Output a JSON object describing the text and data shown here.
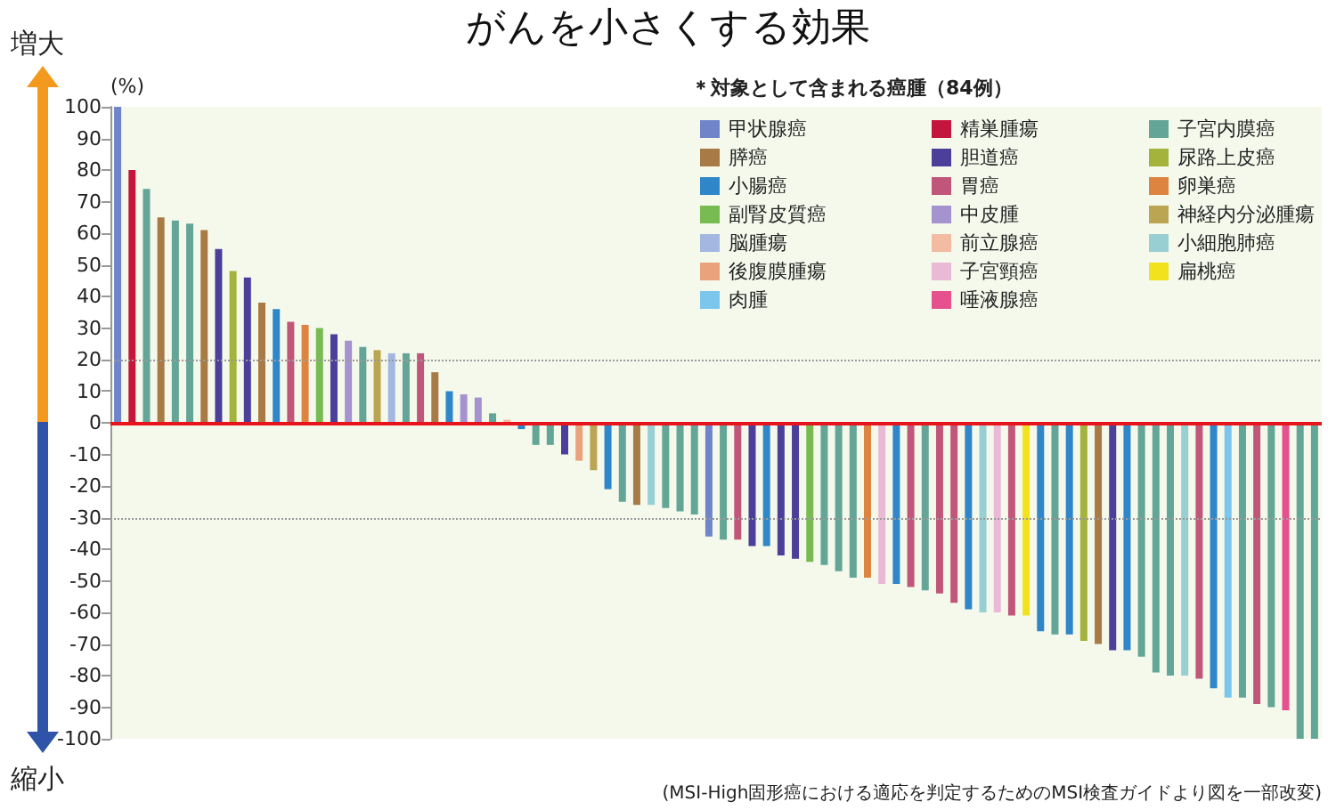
{
  "chart_data": {
    "type": "bar",
    "title": "がんを小さくする効果",
    "ylabel": "(%)",
    "legend_title": "＊対象として含まれる癌腫（84例）",
    "annotations": [
      "増大",
      "縮小",
      "(MSI-High固形癌における適応を判定するためのMSI検査ガイドより図を一部改変)"
    ],
    "categories": [
      null,
      null,
      null,
      null,
      null,
      null,
      null,
      null,
      null,
      null,
      null,
      null,
      null,
      null,
      null,
      null,
      null,
      null,
      null,
      null,
      null,
      null,
      null,
      null,
      null,
      null,
      null,
      null,
      null,
      null,
      null,
      null,
      null,
      null,
      null,
      null,
      null,
      null,
      null,
      null,
      null,
      null,
      null,
      null,
      null,
      null,
      null,
      null,
      null,
      null,
      null,
      null,
      null,
      null,
      null,
      null,
      null,
      null,
      null,
      null,
      null,
      null,
      null,
      null,
      null,
      null,
      null,
      null,
      null,
      null,
      null,
      null,
      null,
      null,
      null,
      null,
      null,
      null,
      null,
      null,
      null,
      null,
      null,
      null
    ],
    "series": [
      {
        "name": "甲状腺癌",
        "color": "#6f84c9",
        "values": [
          100,
          null,
          null,
          null,
          null,
          null,
          null,
          null,
          null,
          null,
          null,
          null,
          null,
          null,
          null,
          null,
          null,
          null,
          null,
          null,
          null,
          null,
          null,
          null,
          null,
          null,
          null,
          null,
          null,
          null,
          null,
          null,
          null,
          null,
          null,
          null,
          null,
          null,
          null,
          null,
          null,
          -36,
          null,
          null,
          null,
          null,
          null,
          null,
          null,
          null,
          null,
          null,
          null,
          null,
          null,
          null,
          null,
          null,
          null,
          null,
          null,
          null,
          null,
          null,
          null,
          null,
          null,
          null,
          null,
          null,
          null,
          null,
          null,
          null,
          null,
          null,
          null,
          null,
          null,
          null,
          null,
          null,
          null,
          null
        ]
      },
      {
        "name": "精巣腫瘍",
        "color": "#c4163c",
        "values": [
          null,
          80,
          null,
          null,
          null,
          null,
          null,
          null,
          null,
          null,
          null,
          null,
          null,
          null,
          null,
          null,
          null,
          null,
          null,
          null,
          null,
          null,
          null,
          null,
          null,
          null,
          null,
          null,
          null,
          null,
          null,
          null,
          null,
          null,
          null,
          null,
          null,
          null,
          null,
          null,
          null,
          null,
          null,
          null,
          null,
          null,
          null,
          null,
          null,
          null,
          null,
          null,
          null,
          null,
          null,
          null,
          null,
          null,
          null,
          null,
          null,
          null,
          null,
          null,
          null,
          null,
          null,
          null,
          null,
          null,
          null,
          null,
          null,
          null,
          null,
          null,
          null,
          null,
          null,
          null,
          null,
          null,
          null,
          null
        ]
      },
      {
        "name": "子宮内膜癌",
        "color": "#63a596",
        "values": [
          null,
          null,
          74,
          null,
          64,
          63,
          null,
          null,
          null,
          null,
          null,
          null,
          null,
          null,
          null,
          null,
          null,
          24,
          null,
          null,
          22,
          null,
          null,
          null,
          null,
          null,
          3,
          null,
          null,
          -7,
          -7,
          null,
          null,
          null,
          null,
          -25,
          null,
          null,
          -27,
          -28,
          -29,
          null,
          -37,
          null,
          null,
          null,
          null,
          null,
          null,
          -45,
          -47,
          -49,
          null,
          null,
          null,
          null,
          -53,
          null,
          null,
          null,
          null,
          null,
          null,
          null,
          null,
          -67,
          null,
          null,
          null,
          null,
          null,
          -74,
          -79,
          -80,
          null,
          null,
          null,
          null,
          -87,
          null,
          -90,
          null,
          -100,
          -100
        ]
      },
      {
        "name": "膵癌",
        "color": "#a87a45",
        "values": [
          null,
          null,
          null,
          65,
          null,
          null,
          61,
          null,
          null,
          null,
          38,
          null,
          null,
          null,
          null,
          null,
          null,
          null,
          null,
          null,
          null,
          null,
          16,
          null,
          null,
          null,
          null,
          null,
          null,
          null,
          null,
          null,
          null,
          null,
          null,
          null,
          -26,
          null,
          null,
          null,
          null,
          null,
          null,
          null,
          null,
          null,
          null,
          null,
          null,
          null,
          null,
          null,
          null,
          null,
          null,
          null,
          null,
          null,
          null,
          null,
          null,
          null,
          null,
          null,
          null,
          null,
          null,
          null,
          -70,
          null,
          null,
          null,
          null,
          null,
          null,
          null,
          null,
          null,
          null,
          null,
          null,
          null,
          null,
          null
        ]
      },
      {
        "name": "胆道癌",
        "color": "#4b3f99",
        "values": [
          null,
          null,
          null,
          null,
          null,
          null,
          null,
          55,
          null,
          46,
          null,
          null,
          null,
          null,
          null,
          28,
          null,
          null,
          null,
          null,
          null,
          null,
          null,
          null,
          null,
          null,
          null,
          null,
          null,
          null,
          null,
          -10,
          null,
          null,
          null,
          null,
          null,
          null,
          null,
          null,
          null,
          null,
          null,
          null,
          -39,
          null,
          -42,
          -43,
          null,
          null,
          null,
          null,
          null,
          null,
          null,
          null,
          null,
          null,
          null,
          null,
          null,
          null,
          null,
          null,
          null,
          null,
          null,
          null,
          null,
          -72,
          null,
          null,
          null,
          null,
          null,
          null,
          null,
          null,
          null,
          null,
          null,
          null,
          null,
          null
        ]
      },
      {
        "name": "尿路上皮癌",
        "color": "#a3b33b",
        "values": [
          null,
          null,
          null,
          null,
          null,
          null,
          null,
          null,
          48,
          null,
          null,
          null,
          null,
          null,
          null,
          null,
          null,
          null,
          null,
          null,
          null,
          null,
          null,
          null,
          null,
          null,
          null,
          null,
          null,
          null,
          null,
          null,
          null,
          null,
          null,
          null,
          null,
          null,
          null,
          null,
          null,
          null,
          null,
          null,
          null,
          null,
          null,
          null,
          null,
          null,
          null,
          null,
          null,
          null,
          null,
          null,
          null,
          null,
          null,
          null,
          null,
          null,
          null,
          null,
          null,
          null,
          null,
          -69,
          null,
          null,
          null,
          null,
          null,
          null,
          null,
          null,
          null,
          null,
          null,
          null,
          null,
          null,
          null,
          null
        ]
      },
      {
        "name": "小腸癌",
        "color": "#2f86c8",
        "values": [
          null,
          null,
          null,
          null,
          null,
          null,
          null,
          null,
          null,
          null,
          null,
          36,
          null,
          null,
          null,
          null,
          null,
          null,
          null,
          null,
          null,
          null,
          null,
          10,
          null,
          null,
          null,
          null,
          -2,
          null,
          null,
          null,
          null,
          null,
          -21,
          null,
          null,
          null,
          null,
          null,
          null,
          null,
          null,
          null,
          null,
          -39,
          null,
          null,
          null,
          null,
          null,
          null,
          null,
          null,
          -51,
          null,
          null,
          null,
          null,
          -59,
          null,
          null,
          null,
          null,
          -66,
          null,
          -67,
          null,
          null,
          null,
          -72,
          null,
          null,
          null,
          null,
          null,
          -84,
          null,
          null,
          null,
          null,
          null,
          null,
          null
        ]
      },
      {
        "name": "胃癌",
        "color": "#c0577a",
        "values": [
          null,
          null,
          null,
          null,
          null,
          null,
          null,
          null,
          null,
          null,
          null,
          null,
          32,
          null,
          null,
          null,
          null,
          null,
          null,
          null,
          null,
          22,
          null,
          null,
          null,
          null,
          null,
          null,
          null,
          null,
          null,
          null,
          null,
          null,
          null,
          null,
          null,
          null,
          null,
          null,
          null,
          null,
          null,
          -37,
          null,
          null,
          null,
          null,
          null,
          null,
          null,
          null,
          null,
          null,
          null,
          -52,
          null,
          -54,
          -57,
          null,
          null,
          null,
          -61,
          null,
          null,
          null,
          null,
          null,
          null,
          null,
          null,
          null,
          null,
          null,
          null,
          -81,
          null,
          null,
          null,
          -89,
          null,
          null,
          null,
          null
        ]
      },
      {
        "name": "卵巣癌",
        "color": "#dd8540",
        "values": [
          null,
          null,
          null,
          null,
          null,
          null,
          null,
          null,
          null,
          null,
          null,
          null,
          null,
          31,
          null,
          null,
          null,
          null,
          null,
          null,
          null,
          null,
          null,
          null,
          null,
          null,
          null,
          null,
          null,
          null,
          null,
          null,
          null,
          null,
          null,
          null,
          null,
          null,
          null,
          null,
          null,
          null,
          null,
          null,
          null,
          null,
          null,
          null,
          null,
          null,
          null,
          null,
          -49,
          null,
          null,
          null,
          null,
          null,
          null,
          null,
          null,
          null,
          null,
          null,
          null,
          null,
          null,
          null,
          null,
          null,
          null,
          null,
          null,
          null,
          null,
          null,
          null,
          null,
          null,
          null,
          null,
          null,
          null,
          null
        ]
      },
      {
        "name": "副腎皮質癌",
        "color": "#78bb52",
        "values": [
          null,
          null,
          null,
          null,
          null,
          null,
          null,
          null,
          null,
          null,
          null,
          null,
          null,
          null,
          30,
          null,
          null,
          null,
          null,
          null,
          null,
          null,
          null,
          null,
          null,
          null,
          null,
          null,
          null,
          null,
          null,
          null,
          null,
          null,
          null,
          null,
          null,
          null,
          null,
          null,
          null,
          null,
          null,
          null,
          null,
          null,
          null,
          null,
          -44,
          null,
          null,
          null,
          null,
          null,
          null,
          null,
          null,
          null,
          null,
          null,
          null,
          null,
          null,
          null,
          null,
          null,
          null,
          null,
          null,
          null,
          null,
          null,
          null,
          null,
          null,
          null,
          null,
          null,
          null,
          null,
          null,
          null,
          null,
          null
        ]
      },
      {
        "name": "中皮腫",
        "color": "#a593cf",
        "values": [
          null,
          null,
          null,
          null,
          null,
          null,
          null,
          null,
          null,
          null,
          null,
          null,
          null,
          null,
          null,
          null,
          26,
          null,
          null,
          null,
          null,
          null,
          null,
          null,
          9,
          8,
          null,
          null,
          null,
          null,
          null,
          null,
          null,
          null,
          null,
          null,
          null,
          null,
          null,
          null,
          null,
          null,
          null,
          null,
          null,
          null,
          null,
          null,
          null,
          null,
          null,
          null,
          null,
          null,
          null,
          null,
          null,
          null,
          null,
          null,
          null,
          null,
          null,
          null,
          null,
          null,
          null,
          null,
          null,
          null,
          null,
          null,
          null,
          null,
          null,
          null,
          null,
          null,
          null,
          null,
          null,
          null,
          null,
          null
        ]
      },
      {
        "name": "神経内分泌腫瘍",
        "color": "#bba552",
        "values": [
          null,
          null,
          null,
          null,
          null,
          null,
          null,
          null,
          null,
          null,
          null,
          null,
          null,
          null,
          null,
          null,
          null,
          null,
          23,
          null,
          null,
          null,
          null,
          null,
          null,
          null,
          null,
          null,
          null,
          null,
          null,
          null,
          null,
          -15,
          null,
          null,
          null,
          null,
          null,
          null,
          null,
          null,
          null,
          null,
          null,
          null,
          null,
          null,
          null,
          null,
          null,
          null,
          null,
          null,
          null,
          null,
          null,
          null,
          null,
          null,
          null,
          null,
          null,
          null,
          null,
          null,
          null,
          null,
          null,
          null,
          null,
          null,
          null,
          null,
          null,
          null,
          null,
          null,
          null,
          null,
          null,
          null,
          null,
          null
        ]
      },
      {
        "name": "脳腫瘍",
        "color": "#a3b7e0",
        "values": [
          null,
          null,
          null,
          null,
          null,
          null,
          null,
          null,
          null,
          null,
          null,
          null,
          null,
          null,
          null,
          null,
          null,
          null,
          null,
          22,
          null,
          null,
          null,
          null,
          null,
          null,
          null,
          null,
          null,
          null,
          null,
          null,
          null,
          null,
          null,
          null,
          null,
          null,
          null,
          null,
          null,
          null,
          null,
          null,
          null,
          null,
          null,
          null,
          null,
          null,
          null,
          null,
          null,
          null,
          null,
          null,
          null,
          null,
          null,
          null,
          null,
          null,
          null,
          null,
          null,
          null,
          null,
          null,
          null,
          null,
          null,
          null,
          null,
          null,
          null,
          null,
          null,
          null,
          null,
          null,
          null,
          null,
          null,
          null
        ]
      },
      {
        "name": "前立腺癌",
        "color": "#f3bba2",
        "values": [
          null,
          null,
          null,
          null,
          null,
          null,
          null,
          null,
          null,
          null,
          null,
          null,
          null,
          null,
          null,
          null,
          null,
          null,
          null,
          null,
          null,
          null,
          null,
          null,
          null,
          null,
          null,
          1,
          null,
          null,
          null,
          null,
          null,
          null,
          null,
          null,
          null,
          null,
          null,
          null,
          null,
          null,
          null,
          null,
          null,
          null,
          null,
          null,
          null,
          null,
          null,
          null,
          null,
          null,
          null,
          null,
          null,
          null,
          null,
          null,
          null,
          null,
          null,
          null,
          null,
          null,
          null,
          null,
          null,
          null,
          null,
          null,
          null,
          null,
          null,
          null,
          null,
          null,
          null,
          null,
          null,
          null,
          null,
          null
        ]
      },
      {
        "name": "小細胞肺癌",
        "color": "#98cfd3",
        "values": [
          null,
          null,
          null,
          null,
          null,
          null,
          null,
          null,
          null,
          null,
          null,
          null,
          null,
          null,
          null,
          null,
          null,
          null,
          null,
          null,
          null,
          null,
          null,
          null,
          null,
          null,
          null,
          null,
          null,
          null,
          null,
          null,
          null,
          null,
          null,
          null,
          null,
          -26,
          null,
          null,
          null,
          null,
          null,
          null,
          null,
          null,
          null,
          null,
          null,
          null,
          null,
          null,
          null,
          null,
          null,
          null,
          null,
          null,
          null,
          null,
          -60,
          null,
          null,
          null,
          null,
          null,
          null,
          null,
          null,
          null,
          null,
          null,
          null,
          null,
          -80,
          null,
          null,
          null,
          null,
          null,
          null,
          null,
          null,
          null
        ]
      },
      {
        "name": "後腹膜腫瘍",
        "color": "#e9a27c",
        "values": [
          null,
          null,
          null,
          null,
          null,
          null,
          null,
          null,
          null,
          null,
          null,
          null,
          null,
          null,
          null,
          null,
          null,
          null,
          null,
          null,
          null,
          null,
          null,
          null,
          null,
          null,
          null,
          null,
          null,
          null,
          null,
          null,
          -12,
          null,
          null,
          null,
          null,
          null,
          null,
          null,
          null,
          null,
          null,
          null,
          null,
          null,
          null,
          null,
          null,
          null,
          null,
          null,
          null,
          null,
          null,
          null,
          null,
          null,
          null,
          null,
          null,
          null,
          null,
          null,
          null,
          null,
          null,
          null,
          null,
          null,
          null,
          null,
          null,
          null,
          null,
          null,
          null,
          null,
          null,
          null,
          null,
          null,
          null,
          null
        ]
      },
      {
        "name": "子宮頸癌",
        "color": "#eab9d6",
        "values": [
          null,
          null,
          null,
          null,
          null,
          null,
          null,
          null,
          null,
          null,
          null,
          null,
          null,
          null,
          null,
          null,
          null,
          null,
          null,
          null,
          null,
          null,
          null,
          null,
          null,
          null,
          null,
          null,
          null,
          null,
          null,
          null,
          null,
          null,
          null,
          null,
          null,
          null,
          null,
          null,
          null,
          null,
          null,
          null,
          null,
          null,
          null,
          null,
          null,
          null,
          null,
          null,
          null,
          -51,
          null,
          null,
          null,
          null,
          null,
          null,
          null,
          -60,
          null,
          null,
          null,
          null,
          null,
          null,
          null,
          null,
          null,
          null,
          null,
          null,
          null,
          null,
          null,
          null,
          null,
          null,
          null,
          null,
          null,
          null
        ]
      },
      {
        "name": "扁桃癌",
        "color": "#f2e21e",
        "values": [
          null,
          null,
          null,
          null,
          null,
          null,
          null,
          null,
          null,
          null,
          null,
          null,
          null,
          null,
          null,
          null,
          null,
          null,
          null,
          null,
          null,
          null,
          null,
          null,
          null,
          null,
          null,
          null,
          null,
          null,
          null,
          null,
          null,
          null,
          null,
          null,
          null,
          null,
          null,
          null,
          null,
          null,
          null,
          null,
          null,
          null,
          null,
          null,
          null,
          null,
          null,
          null,
          null,
          null,
          null,
          null,
          null,
          null,
          null,
          null,
          null,
          null,
          null,
          -61,
          null,
          null,
          null,
          null,
          null,
          null,
          null,
          null,
          null,
          null,
          null,
          null,
          null,
          null,
          null,
          null,
          null,
          null,
          null,
          null
        ]
      },
      {
        "name": "肉腫",
        "color": "#7cc6ee",
        "values": [
          null,
          null,
          null,
          null,
          null,
          null,
          null,
          null,
          null,
          null,
          null,
          null,
          null,
          null,
          null,
          null,
          null,
          null,
          null,
          null,
          null,
          null,
          null,
          null,
          null,
          null,
          null,
          null,
          null,
          null,
          null,
          null,
          null,
          null,
          null,
          null,
          null,
          null,
          null,
          null,
          null,
          null,
          null,
          null,
          null,
          null,
          null,
          null,
          null,
          null,
          null,
          null,
          null,
          null,
          null,
          null,
          null,
          null,
          null,
          null,
          null,
          null,
          null,
          null,
          null,
          null,
          null,
          null,
          null,
          null,
          null,
          null,
          null,
          null,
          null,
          null,
          null,
          -87,
          null,
          null,
          null,
          null,
          null,
          null
        ]
      },
      {
        "name": "唾液腺癌",
        "color": "#e5508d",
        "values": [
          null,
          null,
          null,
          null,
          null,
          null,
          null,
          null,
          null,
          null,
          null,
          null,
          null,
          null,
          null,
          null,
          null,
          null,
          null,
          null,
          null,
          null,
          null,
          null,
          null,
          null,
          null,
          null,
          null,
          null,
          null,
          null,
          null,
          null,
          null,
          null,
          null,
          null,
          null,
          null,
          null,
          null,
          null,
          null,
          null,
          null,
          null,
          null,
          null,
          null,
          null,
          null,
          null,
          null,
          null,
          null,
          null,
          null,
          null,
          null,
          null,
          null,
          null,
          null,
          null,
          null,
          null,
          null,
          null,
          null,
          null,
          null,
          null,
          null,
          null,
          null,
          null,
          null,
          null,
          null,
          null,
          -91,
          null,
          null
        ]
      }
    ],
    "ylim": [
      -100,
      100
    ],
    "yticks": [
      -100,
      -90,
      -80,
      -70,
      -60,
      -50,
      -40,
      -30,
      -20,
      -10,
      0,
      10,
      20,
      30,
      40,
      50,
      60,
      70,
      80,
      90,
      100
    ],
    "ref_lines": [
      {
        "axis": "y",
        "value": 20,
        "color": "#9a9a9a",
        "line_style": "dotted"
      },
      {
        "axis": "y",
        "value": -30,
        "color": "#9a9a9a",
        "line_style": "dotted"
      },
      {
        "axis": "y",
        "value": 0,
        "color": "#e8141b",
        "line_style": "solid"
      }
    ],
    "legend": "top right",
    "tick_labels": "y"
  }
}
